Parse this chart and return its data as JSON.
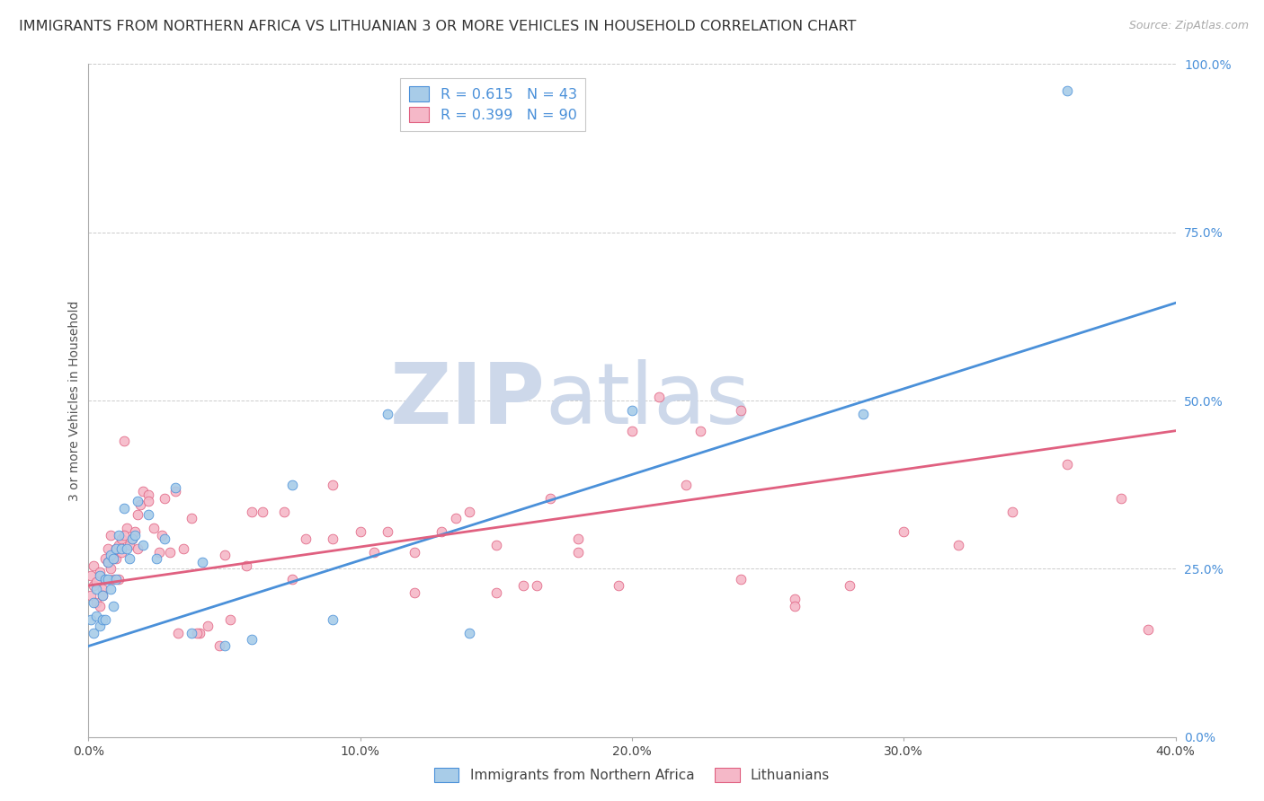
{
  "title": "IMMIGRANTS FROM NORTHERN AFRICA VS LITHUANIAN 3 OR MORE VEHICLES IN HOUSEHOLD CORRELATION CHART",
  "source": "Source: ZipAtlas.com",
  "xlabel_ticks": [
    "0.0%",
    "",
    "10.0%",
    "",
    "20.0%",
    "",
    "30.0%",
    "",
    "40.0%"
  ],
  "xlabel_tick_vals": [
    0.0,
    0.05,
    0.1,
    0.15,
    0.2,
    0.25,
    0.3,
    0.35,
    0.4
  ],
  "ylabel_ticks": [
    "0.0%",
    "25.0%",
    "50.0%",
    "75.0%",
    "100.0%"
  ],
  "ylabel_tick_vals": [
    0.0,
    0.25,
    0.5,
    0.75,
    1.0
  ],
  "ylabel": "3 or more Vehicles in Household",
  "legend_label1": "Immigrants from Northern Africa",
  "legend_label2": "Lithuanians",
  "R1": 0.615,
  "N1": 43,
  "R2": 0.399,
  "N2": 90,
  "color1": "#a8cce8",
  "color2": "#f5b8c8",
  "line_color1": "#4a90d9",
  "line_color2": "#e06080",
  "watermark_zip": "ZIP",
  "watermark_atlas": "atlas",
  "xlim": [
    0.0,
    0.4
  ],
  "ylim": [
    0.0,
    1.0
  ],
  "background_color": "#ffffff",
  "grid_color": "#cccccc",
  "title_fontsize": 11.5,
  "axis_label_fontsize": 10,
  "tick_fontsize": 10,
  "watermark_color": "#cdd8ea",
  "source_fontsize": 9,
  "blue_line_x0": 0.0,
  "blue_line_y0": 0.135,
  "blue_line_x1": 0.4,
  "blue_line_y1": 0.645,
  "pink_line_x0": 0.0,
  "pink_line_y0": 0.225,
  "pink_line_x1": 0.4,
  "pink_line_y1": 0.455,
  "blue_scatter_x": [
    0.001,
    0.002,
    0.002,
    0.003,
    0.003,
    0.004,
    0.004,
    0.005,
    0.005,
    0.006,
    0.006,
    0.007,
    0.007,
    0.008,
    0.008,
    0.009,
    0.009,
    0.01,
    0.01,
    0.011,
    0.012,
    0.013,
    0.014,
    0.015,
    0.016,
    0.017,
    0.018,
    0.02,
    0.022,
    0.025,
    0.028,
    0.032,
    0.038,
    0.042,
    0.05,
    0.06,
    0.075,
    0.09,
    0.11,
    0.14,
    0.2,
    0.285,
    0.36
  ],
  "blue_scatter_y": [
    0.175,
    0.2,
    0.155,
    0.22,
    0.18,
    0.24,
    0.165,
    0.21,
    0.175,
    0.235,
    0.175,
    0.26,
    0.235,
    0.27,
    0.22,
    0.265,
    0.195,
    0.235,
    0.28,
    0.3,
    0.28,
    0.34,
    0.28,
    0.265,
    0.295,
    0.3,
    0.35,
    0.285,
    0.33,
    0.265,
    0.295,
    0.37,
    0.155,
    0.26,
    0.135,
    0.145,
    0.375,
    0.175,
    0.48,
    0.155,
    0.485,
    0.48,
    0.96
  ],
  "pink_scatter_x": [
    0.001,
    0.001,
    0.002,
    0.002,
    0.003,
    0.003,
    0.004,
    0.004,
    0.005,
    0.005,
    0.006,
    0.006,
    0.007,
    0.007,
    0.008,
    0.008,
    0.009,
    0.009,
    0.01,
    0.01,
    0.011,
    0.011,
    0.012,
    0.012,
    0.013,
    0.014,
    0.015,
    0.016,
    0.017,
    0.018,
    0.019,
    0.02,
    0.022,
    0.024,
    0.026,
    0.028,
    0.03,
    0.032,
    0.035,
    0.038,
    0.041,
    0.044,
    0.048,
    0.052,
    0.058,
    0.064,
    0.072,
    0.08,
    0.09,
    0.1,
    0.11,
    0.12,
    0.13,
    0.14,
    0.15,
    0.16,
    0.17,
    0.18,
    0.195,
    0.21,
    0.225,
    0.24,
    0.26,
    0.28,
    0.3,
    0.32,
    0.34,
    0.36,
    0.38,
    0.39,
    0.013,
    0.018,
    0.022,
    0.027,
    0.033,
    0.04,
    0.05,
    0.06,
    0.075,
    0.09,
    0.105,
    0.12,
    0.135,
    0.15,
    0.165,
    0.18,
    0.2,
    0.22,
    0.24,
    0.26
  ],
  "pink_scatter_y": [
    0.21,
    0.24,
    0.225,
    0.255,
    0.23,
    0.2,
    0.195,
    0.245,
    0.22,
    0.21,
    0.235,
    0.265,
    0.26,
    0.28,
    0.3,
    0.25,
    0.265,
    0.235,
    0.265,
    0.28,
    0.235,
    0.285,
    0.275,
    0.295,
    0.44,
    0.31,
    0.285,
    0.295,
    0.305,
    0.33,
    0.345,
    0.365,
    0.36,
    0.31,
    0.275,
    0.355,
    0.275,
    0.365,
    0.28,
    0.325,
    0.155,
    0.165,
    0.135,
    0.175,
    0.255,
    0.335,
    0.335,
    0.295,
    0.375,
    0.305,
    0.305,
    0.275,
    0.305,
    0.335,
    0.285,
    0.225,
    0.355,
    0.275,
    0.225,
    0.505,
    0.455,
    0.485,
    0.205,
    0.225,
    0.305,
    0.285,
    0.335,
    0.405,
    0.355,
    0.16,
    0.3,
    0.28,
    0.35,
    0.3,
    0.155,
    0.155,
    0.27,
    0.335,
    0.235,
    0.295,
    0.275,
    0.215,
    0.325,
    0.215,
    0.225,
    0.295,
    0.455,
    0.375,
    0.235,
    0.195
  ]
}
